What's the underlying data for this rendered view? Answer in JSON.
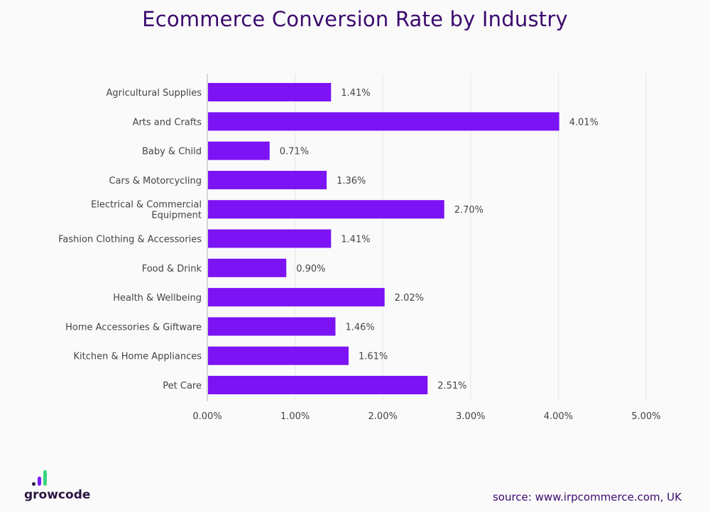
{
  "title": "Ecommerce Conversion Rate by Industry",
  "source": "source: www.irpcommerce.com, UK",
  "logo": {
    "text": "growcode",
    "icon": "growcode-bars-logo-icon",
    "colors": [
      "#2a1540",
      "#7b1fff",
      "#3ad47d"
    ]
  },
  "colors": {
    "bar": "#7b13f5",
    "title": "#3b0a6e",
    "grid": "#e6e6e6",
    "axis": "#bdbdbd",
    "label": "#444444"
  },
  "chart_data": {
    "type": "bar",
    "orientation": "horizontal",
    "categories": [
      "Agricultural Supplies",
      "Arts and Crafts",
      "Baby & Child",
      "Cars & Motorcycling",
      "Electrical & Commercial Equipment",
      "Fashion Clothing & Accessories",
      "Food & Drink",
      "Health & Wellbeing",
      "Home Accessories & Giftware",
      "Kitchen & Home Appliances",
      "Pet Care"
    ],
    "category_lines": [
      [
        "Agricultural Supplies"
      ],
      [
        "Arts and Crafts"
      ],
      [
        "Baby & Child"
      ],
      [
        "Cars & Motorcycling"
      ],
      [
        "Electrical & Commercial",
        "Equipment"
      ],
      [
        "Fashion Clothing & Accessories"
      ],
      [
        "Food & Drink"
      ],
      [
        "Health & Wellbeing"
      ],
      [
        "Home Accessories & Giftware"
      ],
      [
        "Kitchen & Home Appliances"
      ],
      [
        "Pet Care"
      ]
    ],
    "values": [
      1.41,
      4.01,
      0.71,
      1.36,
      2.7,
      1.41,
      0.9,
      2.02,
      1.46,
      1.61,
      2.51
    ],
    "data_labels": [
      "1.41%",
      "4.01%",
      "0.71%",
      "1.36%",
      "2.70%",
      "1.41%",
      "0.90%",
      "2.02%",
      "1.46%",
      "1.61%",
      "2.51%"
    ],
    "xlim": [
      0,
      5
    ],
    "xticks": [
      0,
      1,
      2,
      3,
      4,
      5
    ],
    "xtick_labels": [
      "0.00%",
      "1.00%",
      "2.00%",
      "3.00%",
      "4.00%",
      "5.00%"
    ],
    "grid": true,
    "legend": "none"
  }
}
